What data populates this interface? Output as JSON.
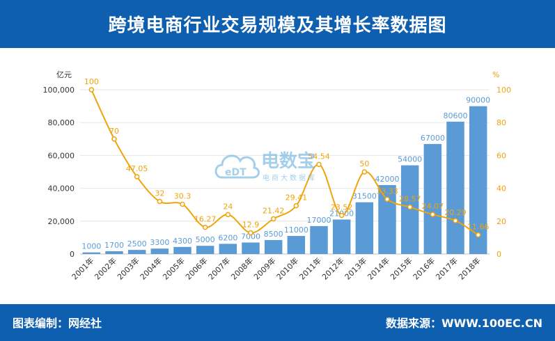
{
  "header": {
    "title": "跨境电商行业交易规模及其增长率数据图"
  },
  "footer": {
    "left_text": "图表编制：网经社",
    "right_text": "数据来源：WWW.100EC.CN"
  },
  "watermark": {
    "logo_text": "电数宝",
    "sub_text": "电商大数据库",
    "badge_text": "eDT"
  },
  "colors": {
    "brand": "#0e5fb0",
    "bar": "#5b9bd5",
    "line": "#f0a30a",
    "bar_label": "#5b9bd5",
    "line_label": "#f0a30a"
  },
  "chart_data": {
    "type": "bar",
    "title": "跨境电商行业交易规模及其增长率数据图",
    "categories": [
      "2001年",
      "2002年",
      "2003年",
      "2004年",
      "2005年",
      "2006年",
      "2007年",
      "2008年",
      "2009年",
      "2010年",
      "2011年",
      "2012年",
      "2013年",
      "2014年",
      "2015年",
      "2016年",
      "2017年",
      "2018年"
    ],
    "y_left_unit": "亿元",
    "y_right_unit": "%",
    "y_left_ticks": [
      "0",
      "20,000",
      "40,000",
      "60,000",
      "80,000",
      "100,000"
    ],
    "y_right_ticks": [
      "0",
      "20",
      "40",
      "60",
      "80",
      "100"
    ],
    "ylim_left": [
      0,
      100000
    ],
    "ylim_right": [
      0,
      100
    ],
    "series": [
      {
        "type": "bar",
        "values": [
          1000,
          1700,
          2500,
          3300,
          4300,
          5000,
          6200,
          7000,
          8500,
          11000,
          17000,
          21000,
          31500,
          42000,
          54000,
          67000,
          80600,
          90000
        ],
        "labels": [
          "1000",
          "1700",
          "2500",
          "3300",
          "4300",
          "5000",
          "6200",
          "7000",
          "8500",
          "11000",
          "17000",
          "21000",
          "31500",
          "42000",
          "54000",
          "67000",
          "80600",
          "90000"
        ]
      },
      {
        "type": "line",
        "axis": "right",
        "values": [
          100,
          70,
          47.05,
          32,
          30.3,
          16.27,
          24,
          12.9,
          21.42,
          29.41,
          54.54,
          23.52,
          50,
          33.33,
          28.57,
          24.07,
          20.29,
          11.66
        ],
        "labels": [
          "100",
          "70",
          "47.05",
          "32",
          "30.3",
          "16.27",
          "24",
          "12.9",
          "21.42",
          "29.41",
          "54.54",
          "23.52",
          "50",
          "33.33",
          "28.57",
          "24.07",
          "20.29",
          "11.66"
        ]
      }
    ]
  }
}
